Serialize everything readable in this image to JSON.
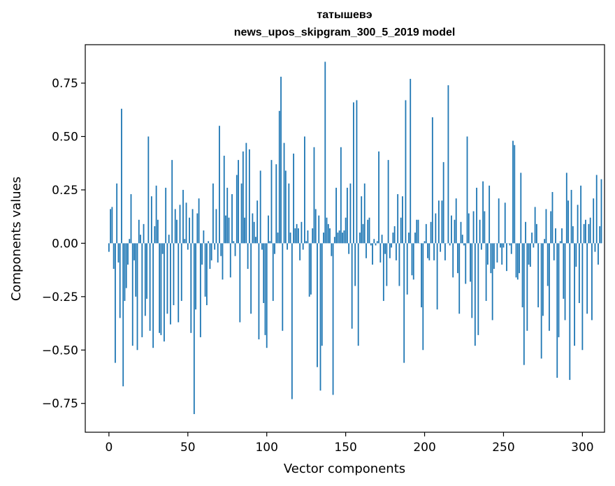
{
  "chart_data": {
    "type": "bar",
    "title_line1": "татышевэ",
    "title_line2": "news_upos_skipgram_300_5_2019 model",
    "xlabel": "Vector components",
    "ylabel": "Components values",
    "xlim": [
      -15,
      314
    ],
    "ylim": [
      -0.885,
      0.93
    ],
    "xticks": [
      0,
      50,
      100,
      150,
      200,
      250,
      300
    ],
    "xtick_labels": [
      "0",
      "50",
      "100",
      "150",
      "200",
      "250",
      "300"
    ],
    "yticks": [
      -0.75,
      -0.5,
      -0.25,
      0.0,
      0.25,
      0.5,
      0.75
    ],
    "ytick_labels": [
      "−0.75",
      "−0.50",
      "−0.25",
      "0.00",
      "0.25",
      "0.50",
      "0.75"
    ],
    "bar_color": "#1f77b4",
    "grid": false,
    "values": [
      -0.04,
      0.16,
      0.17,
      -0.12,
      -0.56,
      0.28,
      -0.09,
      -0.35,
      0.63,
      -0.67,
      -0.27,
      -0.21,
      -0.1,
      0.02,
      0.23,
      -0.48,
      -0.08,
      -0.25,
      -0.5,
      0.11,
      0.04,
      -0.44,
      0.09,
      -0.34,
      -0.26,
      0.5,
      -0.41,
      0.22,
      -0.49,
      0.08,
      0.27,
      0.11,
      -0.42,
      -0.43,
      -0.05,
      -0.46,
      0.26,
      -0.33,
      0.04,
      -0.38,
      0.39,
      -0.29,
      0.16,
      0.11,
      -0.37,
      0.18,
      -0.27,
      0.25,
      0.02,
      0.19,
      -0.03,
      0.12,
      -0.42,
      0.16,
      -0.8,
      -0.31,
      0.14,
      0.21,
      -0.44,
      -0.1,
      0.06,
      -0.25,
      -0.29,
      0.01,
      -0.12,
      -0.08,
      0.28,
      -0.03,
      0.16,
      -0.09,
      0.55,
      -0.06,
      -0.17,
      0.41,
      0.13,
      0.26,
      0.12,
      -0.16,
      0.23,
      0.01,
      -0.06,
      0.32,
      0.39,
      -0.37,
      0.28,
      0.43,
      0.12,
      0.47,
      -0.12,
      0.44,
      -0.33,
      0.14,
      0.1,
      0.03,
      0.2,
      -0.45,
      0.34,
      -0.03,
      -0.28,
      -0.43,
      -0.49,
      0.13,
      0.01,
      0.39,
      -0.27,
      -0.05,
      0.37,
      0.05,
      0.62,
      0.78,
      -0.41,
      0.47,
      0.34,
      -0.03,
      0.28,
      0.05,
      -0.73,
      0.42,
      0.07,
      0.09,
      0.07,
      -0.08,
      0.1,
      -0.03,
      0.5,
      0.01,
      0.06,
      -0.25,
      -0.24,
      0.07,
      0.45,
      0.16,
      -0.58,
      0.13,
      -0.69,
      -0.48,
      0.05,
      0.85,
      0.12,
      0.09,
      0.07,
      -0.06,
      -0.71,
      0.03,
      0.26,
      0.05,
      0.06,
      0.45,
      0.05,
      0.06,
      0.12,
      0.26,
      -0.05,
      0.28,
      -0.4,
      0.66,
      -0.2,
      0.67,
      -0.48,
      0.05,
      0.22,
      0.09,
      0.28,
      -0.07,
      0.11,
      0.12,
      -0.01,
      -0.1,
      0.02,
      -0.01,
      0.01,
      0.43,
      -0.09,
      0.04,
      -0.27,
      -0.05,
      -0.2,
      0.39,
      -0.07,
      -0.02,
      0.05,
      0.08,
      -0.08,
      0.23,
      -0.2,
      0.12,
      0.22,
      -0.56,
      0.67,
      -0.24,
      0.05,
      0.77,
      -0.15,
      -0.17,
      0.05,
      0.11,
      0.11,
      0.0,
      -0.3,
      -0.5,
      0.01,
      0.09,
      -0.07,
      -0.08,
      0.1,
      0.59,
      -0.08,
      0.14,
      -0.31,
      0.2,
      -0.04,
      0.2,
      0.38,
      -0.08,
      0.0,
      0.74,
      -0.01,
      0.13,
      -0.16,
      0.11,
      0.21,
      -0.14,
      -0.33,
      0.1,
      0.04,
      -0.01,
      -0.19,
      0.5,
      0.14,
      -0.18,
      -0.35,
      0.15,
      -0.48,
      0.26,
      -0.43,
      0.11,
      -0.03,
      0.29,
      0.15,
      -0.27,
      -0.1,
      0.27,
      -0.14,
      -0.36,
      -0.12,
      0.0,
      -0.09,
      0.21,
      -0.02,
      -0.1,
      -0.02,
      0.19,
      -0.13,
      0.0,
      -0.01,
      -0.05,
      0.48,
      0.46,
      -0.16,
      -0.17,
      -0.14,
      0.33,
      -0.3,
      -0.57,
      0.1,
      -0.41,
      -0.1,
      -0.11,
      0.05,
      -0.02,
      0.17,
      0.09,
      -0.3,
      0.0,
      -0.54,
      -0.34,
      0.02,
      0.16,
      -0.2,
      -0.41,
      0.15,
      0.24,
      -0.08,
      0.07,
      -0.63,
      -0.44,
      0.01,
      0.07,
      -0.26,
      -0.36,
      0.33,
      0.2,
      -0.64,
      0.25,
      0.08,
      -0.48,
      -0.11,
      0.18,
      -0.28,
      0.27,
      -0.5,
      0.09,
      0.11,
      -0.33,
      0.09,
      0.12,
      -0.36,
      0.21,
      -0.04,
      0.32,
      -0.1,
      0.08,
      0.3
    ]
  }
}
